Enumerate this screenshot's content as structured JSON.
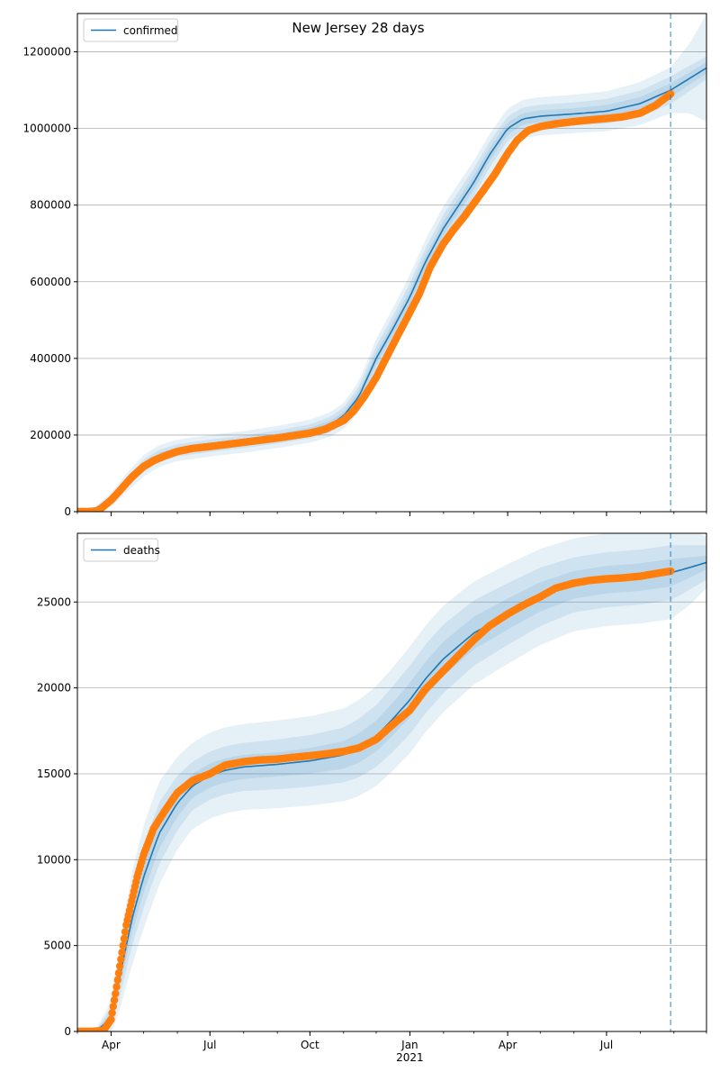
{
  "figure": {
    "title": "New Jersey 28 days"
  },
  "colors": {
    "line": "#1f77b4",
    "points": "#ff7f0e",
    "band": "#1f77b4",
    "grid": "#b0b0b0",
    "vline": "#1f77b4"
  },
  "chart_data": [
    {
      "type": "line",
      "name": "confirmed-panel",
      "x_axis": {
        "type": "date",
        "range": [
          "2020-03-01",
          "2021-10-01"
        ],
        "major_ticks": [
          {
            "date": "2020-04-01",
            "label": "Apr"
          },
          {
            "date": "2020-07-01",
            "label": "Jul"
          },
          {
            "date": "2020-10-01",
            "label": "Oct"
          },
          {
            "date": "2021-01-01",
            "label": "Jan"
          },
          {
            "date": "2021-04-01",
            "label": "Apr"
          },
          {
            "date": "2021-07-01",
            "label": "Jul"
          }
        ],
        "year_label": {
          "date": "2021-01-01",
          "label": "2021"
        },
        "show_labels": false
      },
      "y_axis": {
        "range": [
          0,
          1300000
        ],
        "ticks": [
          0,
          200000,
          400000,
          600000,
          800000,
          1000000,
          1200000
        ],
        "tick_labels": [
          "0",
          "200000",
          "400000",
          "600000",
          "800000",
          "1000000",
          "1200000"
        ],
        "grid": true
      },
      "legend": {
        "label": "confirmed",
        "position": "upper-left"
      },
      "forecast_start": "2021-08-29",
      "model_curve": {
        "dates": [
          "2020-03-01",
          "2020-03-15",
          "2020-04-01",
          "2020-04-15",
          "2020-05-01",
          "2020-05-15",
          "2020-06-01",
          "2020-07-01",
          "2020-08-01",
          "2020-09-01",
          "2020-10-01",
          "2020-10-20",
          "2020-11-01",
          "2020-11-15",
          "2020-12-01",
          "2020-12-15",
          "2021-01-01",
          "2021-01-15",
          "2021-02-01",
          "2021-02-15",
          "2021-03-01",
          "2021-03-15",
          "2021-04-01",
          "2021-04-15",
          "2021-05-01",
          "2021-06-01",
          "2021-07-01",
          "2021-08-01",
          "2021-08-29",
          "2021-09-15",
          "2021-10-01"
        ],
        "values": [
          0,
          5000,
          30000,
          75000,
          120000,
          145000,
          160000,
          172000,
          182000,
          195000,
          210000,
          228000,
          250000,
          300000,
          400000,
          470000,
          560000,
          650000,
          740000,
          800000,
          860000,
          930000,
          1000000,
          1025000,
          1032000,
          1038000,
          1045000,
          1065000,
          1100000,
          1130000,
          1158000
        ]
      },
      "bands": [
        {
          "level": "inner",
          "half_width": [
            0,
            1000,
            5000,
            7000,
            8000,
            8000,
            8000,
            8000,
            8000,
            8500,
            9000,
            10000,
            11000,
            13000,
            16000,
            17000,
            18000,
            18000,
            18000,
            18000,
            18000,
            17000,
            16000,
            15000,
            15000,
            15000,
            16000,
            17000,
            18000,
            16000,
            15000
          ]
        },
        {
          "level": "middle",
          "half_width": [
            0,
            2000,
            10000,
            14000,
            16000,
            16000,
            16000,
            16000,
            16000,
            17000,
            18000,
            20000,
            22000,
            26000,
            32000,
            34000,
            36000,
            36000,
            36000,
            36000,
            36000,
            34000,
            32000,
            30000,
            30000,
            30000,
            32000,
            34000,
            36000,
            33000,
            30000
          ]
        },
        {
          "level": "outer",
          "half_width": [
            0,
            4000,
            18000,
            24000,
            28000,
            28000,
            28000,
            28000,
            28000,
            29000,
            30000,
            32000,
            34000,
            40000,
            50000,
            54000,
            58000,
            58000,
            58000,
            58000,
            56000,
            54000,
            52000,
            50000,
            50000,
            50000,
            52000,
            56000,
            60000,
            90000,
            140000
          ]
        }
      ],
      "observed": {
        "dates": [
          "2020-03-01",
          "2020-03-10",
          "2020-03-20",
          "2020-04-01",
          "2020-04-10",
          "2020-04-20",
          "2020-05-01",
          "2020-05-10",
          "2020-05-20",
          "2020-06-01",
          "2020-06-15",
          "2020-07-01",
          "2020-07-15",
          "2020-08-01",
          "2020-08-15",
          "2020-09-01",
          "2020-09-15",
          "2020-10-01",
          "2020-10-15",
          "2020-11-01",
          "2020-11-10",
          "2020-11-20",
          "2020-12-01",
          "2020-12-10",
          "2020-12-20",
          "2021-01-01",
          "2021-01-10",
          "2021-01-20",
          "2021-02-01",
          "2021-02-10",
          "2021-02-20",
          "2021-03-01",
          "2021-03-10",
          "2021-03-20",
          "2021-04-01",
          "2021-04-10",
          "2021-04-20",
          "2021-05-01",
          "2021-05-15",
          "2021-06-01",
          "2021-06-15",
          "2021-07-01",
          "2021-07-15",
          "2021-08-01",
          "2021-08-15",
          "2021-08-29"
        ],
        "values": [
          0,
          0,
          2000,
          30000,
          58000,
          90000,
          118000,
          133000,
          145000,
          157000,
          165000,
          170000,
          175000,
          181000,
          186000,
          192000,
          198000,
          205000,
          215000,
          238000,
          262000,
          300000,
          350000,
          400000,
          455000,
          520000,
          570000,
          640000,
          700000,
          735000,
          770000,
          805000,
          840000,
          880000,
          935000,
          970000,
          995000,
          1005000,
          1012000,
          1018000,
          1022000,
          1026000,
          1030000,
          1040000,
          1060000,
          1090000
        ]
      }
    },
    {
      "type": "line",
      "name": "deaths-panel",
      "x_axis": {
        "type": "date",
        "range": [
          "2020-03-01",
          "2021-10-01"
        ],
        "major_ticks": [
          {
            "date": "2020-04-01",
            "label": "Apr"
          },
          {
            "date": "2020-07-01",
            "label": "Jul"
          },
          {
            "date": "2020-10-01",
            "label": "Oct"
          },
          {
            "date": "2021-01-01",
            "label": "Jan"
          },
          {
            "date": "2021-04-01",
            "label": "Apr"
          },
          {
            "date": "2021-07-01",
            "label": "Jul"
          }
        ],
        "year_label": {
          "date": "2021-01-01",
          "label": "2021"
        },
        "show_labels": true
      },
      "y_axis": {
        "range": [
          0,
          29000
        ],
        "ticks": [
          0,
          5000,
          10000,
          15000,
          20000,
          25000
        ],
        "tick_labels": [
          "0",
          "5000",
          "10000",
          "15000",
          "20000",
          "25000"
        ],
        "grid": true
      },
      "legend": {
        "label": "deaths",
        "position": "upper-left"
      },
      "forecast_start": "2021-08-29",
      "model_curve": {
        "dates": [
          "2020-03-01",
          "2020-03-20",
          "2020-04-01",
          "2020-04-10",
          "2020-04-20",
          "2020-05-01",
          "2020-05-15",
          "2020-06-01",
          "2020-06-15",
          "2020-07-01",
          "2020-07-15",
          "2020-08-01",
          "2020-09-01",
          "2020-10-01",
          "2020-11-01",
          "2020-11-15",
          "2020-12-01",
          "2020-12-15",
          "2021-01-01",
          "2021-01-15",
          "2021-02-01",
          "2021-03-01",
          "2021-04-01",
          "2021-05-01",
          "2021-06-01",
          "2021-07-01",
          "2021-08-01",
          "2021-08-29",
          "2021-09-15",
          "2021-10-01"
        ],
        "values": [
          0,
          100,
          800,
          3500,
          6500,
          9000,
          11500,
          13300,
          14300,
          14900,
          15200,
          15400,
          15550,
          15750,
          16100,
          16500,
          17200,
          18100,
          19300,
          20500,
          21700,
          23200,
          24300,
          25300,
          26000,
          26300,
          26450,
          26700,
          27000,
          27300
        ]
      },
      "bands": [
        {
          "level": "inner",
          "half_width": [
            0,
            50,
            300,
            600,
            800,
            900,
            900,
            800,
            700,
            700,
            700,
            700,
            700,
            750,
            800,
            850,
            900,
            950,
            1000,
            1000,
            1000,
            950,
            900,
            850,
            800,
            800,
            800,
            800,
            600,
            400
          ]
        },
        {
          "level": "middle",
          "half_width": [
            0,
            100,
            600,
            1200,
            1600,
            1800,
            1800,
            1600,
            1400,
            1400,
            1400,
            1400,
            1450,
            1500,
            1600,
            1700,
            1800,
            1900,
            2000,
            2000,
            2000,
            1900,
            1800,
            1700,
            1600,
            1600,
            1600,
            1600,
            1300,
            1000
          ]
        },
        {
          "level": "outer",
          "half_width": [
            0,
            200,
            1000,
            2000,
            2700,
            3000,
            3000,
            2700,
            2500,
            2500,
            2500,
            2500,
            2550,
            2600,
            2700,
            2800,
            2900,
            3000,
            3100,
            3100,
            3100,
            3000,
            2900,
            2800,
            2700,
            2700,
            2700,
            2700,
            2200,
            1500
          ]
        }
      ],
      "observed": {
        "dates": [
          "2020-03-01",
          "2020-03-15",
          "2020-03-25",
          "2020-04-01",
          "2020-04-05",
          "2020-04-10",
          "2020-04-15",
          "2020-04-20",
          "2020-04-25",
          "2020-05-01",
          "2020-05-10",
          "2020-05-20",
          "2020-06-01",
          "2020-06-15",
          "2020-07-01",
          "2020-07-15",
          "2020-08-01",
          "2020-08-15",
          "2020-09-01",
          "2020-09-15",
          "2020-10-01",
          "2020-10-15",
          "2020-11-01",
          "2020-11-15",
          "2020-12-01",
          "2020-12-15",
          "2021-01-01",
          "2021-01-15",
          "2021-02-01",
          "2021-02-15",
          "2021-03-01",
          "2021-03-15",
          "2021-04-01",
          "2021-04-15",
          "2021-05-01",
          "2021-05-15",
          "2021-06-01",
          "2021-06-15",
          "2021-07-01",
          "2021-07-15",
          "2021-08-01",
          "2021-08-15",
          "2021-08-29"
        ],
        "values": [
          0,
          0,
          50,
          700,
          2200,
          4200,
          6200,
          7600,
          9000,
          10300,
          11800,
          12800,
          13900,
          14600,
          15000,
          15500,
          15700,
          15800,
          15850,
          15950,
          16050,
          16150,
          16300,
          16500,
          17000,
          17800,
          18700,
          19900,
          21000,
          21900,
          22800,
          23600,
          24300,
          24800,
          25300,
          25800,
          26100,
          26250,
          26350,
          26400,
          26500,
          26650,
          26800
        ]
      }
    }
  ]
}
